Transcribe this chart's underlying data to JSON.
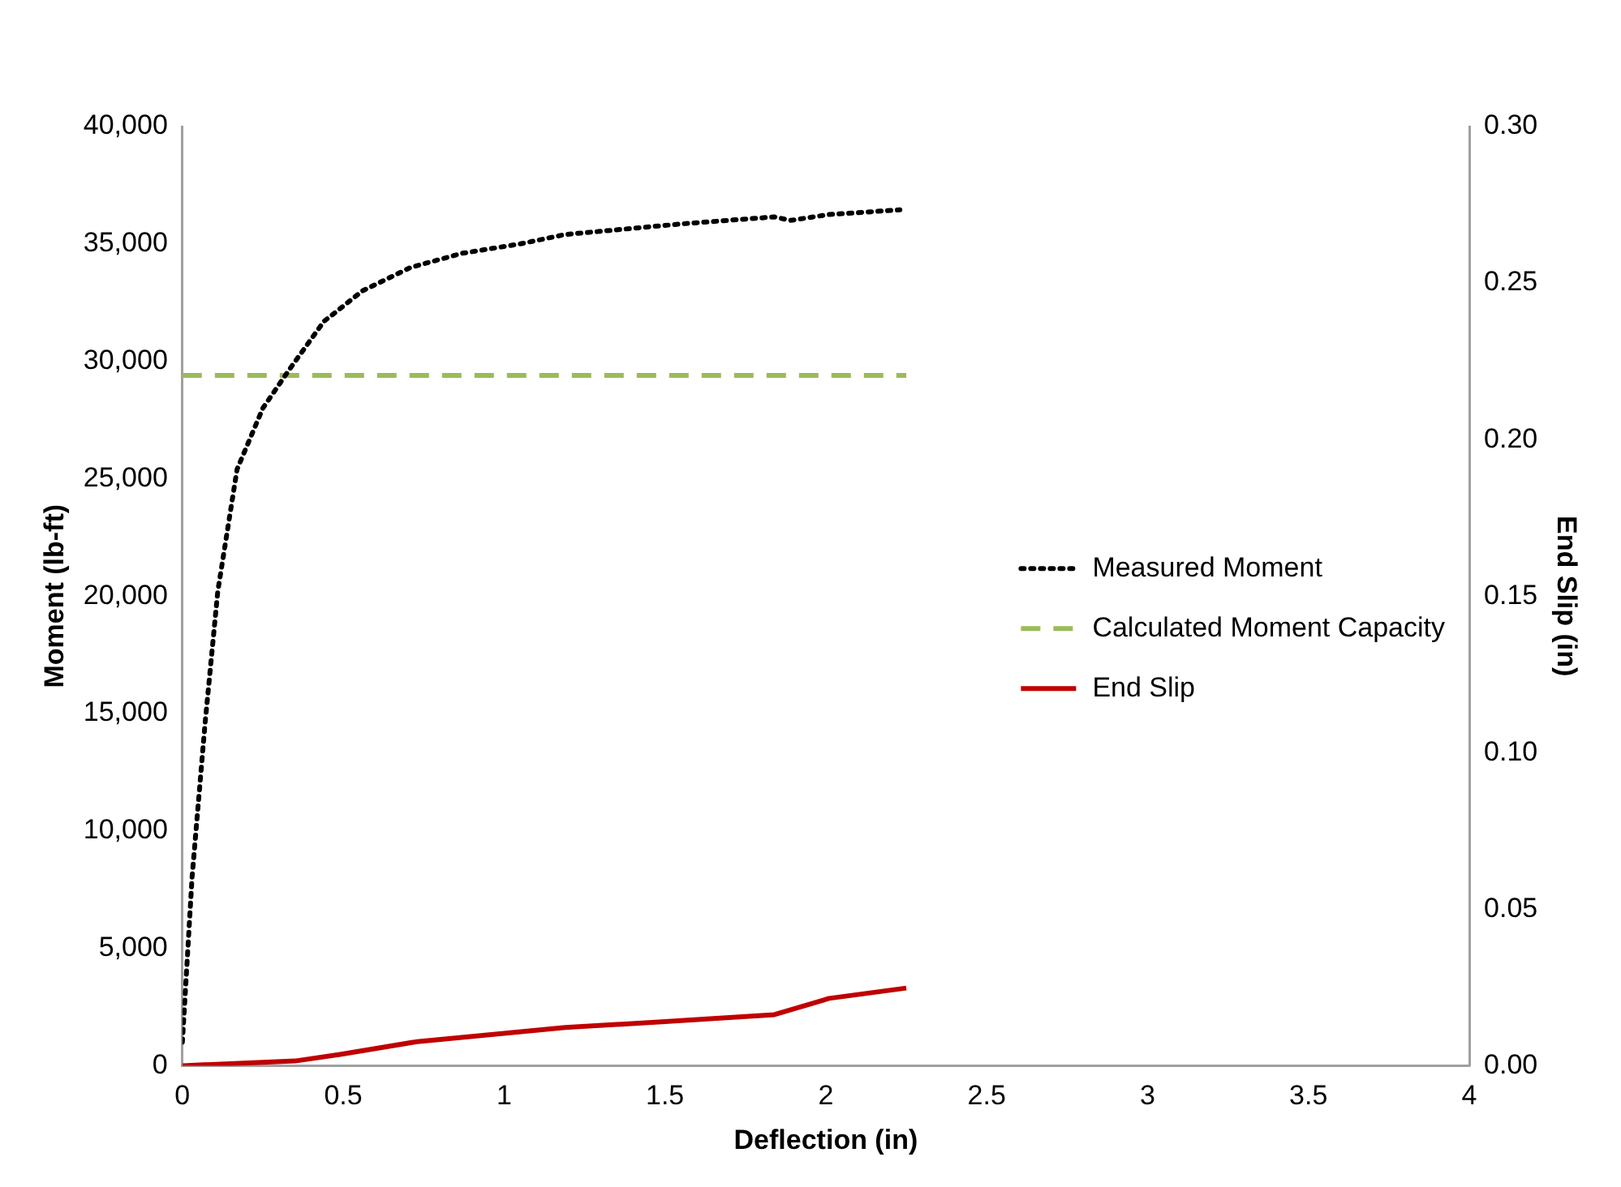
{
  "chart_data": {
    "type": "line",
    "xlabel": "Deflection (in)",
    "ylabel": "Moment (lb-ft)",
    "y2label": "End Slip (in)",
    "xlim": [
      0,
      4
    ],
    "xticks": [
      0,
      0.5,
      1,
      1.5,
      2,
      2.5,
      3,
      3.5,
      4
    ],
    "ylim": [
      0,
      40000
    ],
    "yticks": [
      {
        "value": 0,
        "label": "0"
      },
      {
        "value": 5000,
        "label": "5,000"
      },
      {
        "value": 10000,
        "label": "10,000"
      },
      {
        "value": 15000,
        "label": "15,000"
      },
      {
        "value": 20000,
        "label": "20,000"
      },
      {
        "value": 25000,
        "label": "25,000"
      },
      {
        "value": 30000,
        "label": "30,000"
      },
      {
        "value": 35000,
        "label": "35,000"
      },
      {
        "value": 40000,
        "label": "40,000"
      }
    ],
    "y2lim": [
      0,
      0.3
    ],
    "y2ticks": [
      {
        "value": 0,
        "label": "0.00"
      },
      {
        "value": 0.05,
        "label": "0.05"
      },
      {
        "value": 0.1,
        "label": "0.10"
      },
      {
        "value": 0.15,
        "label": "0.15"
      },
      {
        "value": 0.2,
        "label": "0.20"
      },
      {
        "value": 0.25,
        "label": "0.25"
      },
      {
        "value": 0.3,
        "label": "0.30"
      }
    ],
    "grid": false,
    "legend": "right",
    "marker": "none",
    "series": [
      {
        "name": "Measured Moment",
        "color": "#000000",
        "line_style": "dotted",
        "x": [
          0,
          0.03,
          0.07,
          0.11,
          0.17,
          0.25,
          0.33,
          0.44,
          0.56,
          0.71,
          0.87,
          1.05,
          1.19,
          1.55,
          1.84,
          1.89,
          2.01,
          2.23
        ],
        "values": [
          1000,
          8000,
          14500,
          20200,
          25400,
          28000,
          29600,
          31700,
          33000,
          34000,
          34600,
          35000,
          35400,
          35850,
          36150,
          36000,
          36250,
          36450
        ]
      },
      {
        "name": "Calculated Moment Capacity",
        "color": "#9bbb59",
        "line_style": "dashed",
        "x": [
          0,
          2.25
        ],
        "values": [
          29400,
          29400
        ]
      },
      {
        "name": "End Slip",
        "color": "#c00000",
        "line_style": "solid",
        "axis": "y2",
        "x": [
          0,
          0.35,
          0.49,
          0.73,
          1.19,
          1.49,
          1.84,
          2.01,
          2.25
        ],
        "values": [
          0,
          0.0015,
          0.0036,
          0.0077,
          0.0122,
          0.014,
          0.0163,
          0.0215,
          0.0248
        ]
      }
    ]
  }
}
